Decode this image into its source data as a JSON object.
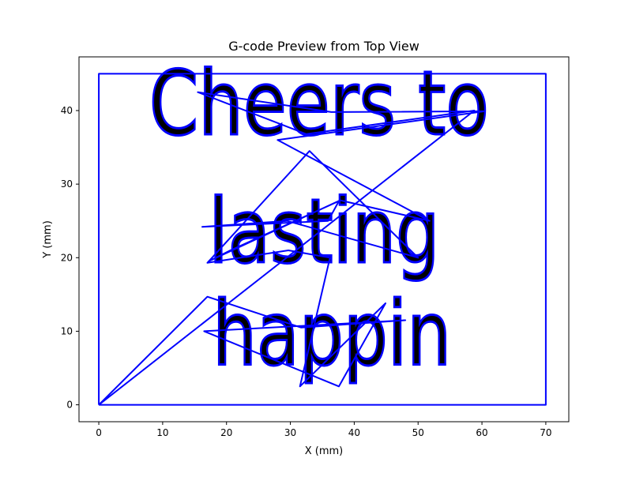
{
  "chart_data": {
    "type": "line",
    "title": "G-code Preview from Top View",
    "xlabel": "X (mm)",
    "ylabel": "Y (mm)",
    "xlim": [
      -3.1,
      73.6
    ],
    "ylim": [
      -2.3,
      47.3
    ],
    "xticks": [
      0,
      10,
      20,
      30,
      40,
      50,
      60,
      70
    ],
    "yticks": [
      0,
      10,
      20,
      30,
      40
    ],
    "grid": false,
    "line_color": "#0000ff",
    "engraved_text": [
      "Cheers to",
      "lasting",
      "happin"
    ],
    "series": [
      {
        "x": [
          0,
          70,
          70,
          0,
          0
        ],
        "y": [
          0,
          0,
          45,
          45,
          0
        ]
      },
      {
        "x": [
          0,
          58.8,
          32.5,
          15.5,
          36.4,
          60.4,
          28.0,
          51.8,
          37.8,
          17.2,
          20.6,
          37.6,
          35.9,
          16.2,
          29.5,
          50.0,
          33.0,
          17.0,
          29.7,
          36.2,
          31.5,
          44.9,
          37.6,
          16.5,
          48.0,
          31.7,
          17.0,
          0
        ],
        "y": [
          0,
          40.0,
          36.8,
          42.5,
          39.8,
          39.9,
          36.0,
          25.0,
          27.8,
          19.5,
          21.0,
          27.7,
          25.0,
          24.2,
          25.0,
          20.0,
          34.5,
          19.3,
          21.0,
          20.0,
          2.5,
          13.8,
          2.5,
          10.0,
          11.5,
          10.5,
          14.7,
          0
        ]
      }
    ]
  }
}
